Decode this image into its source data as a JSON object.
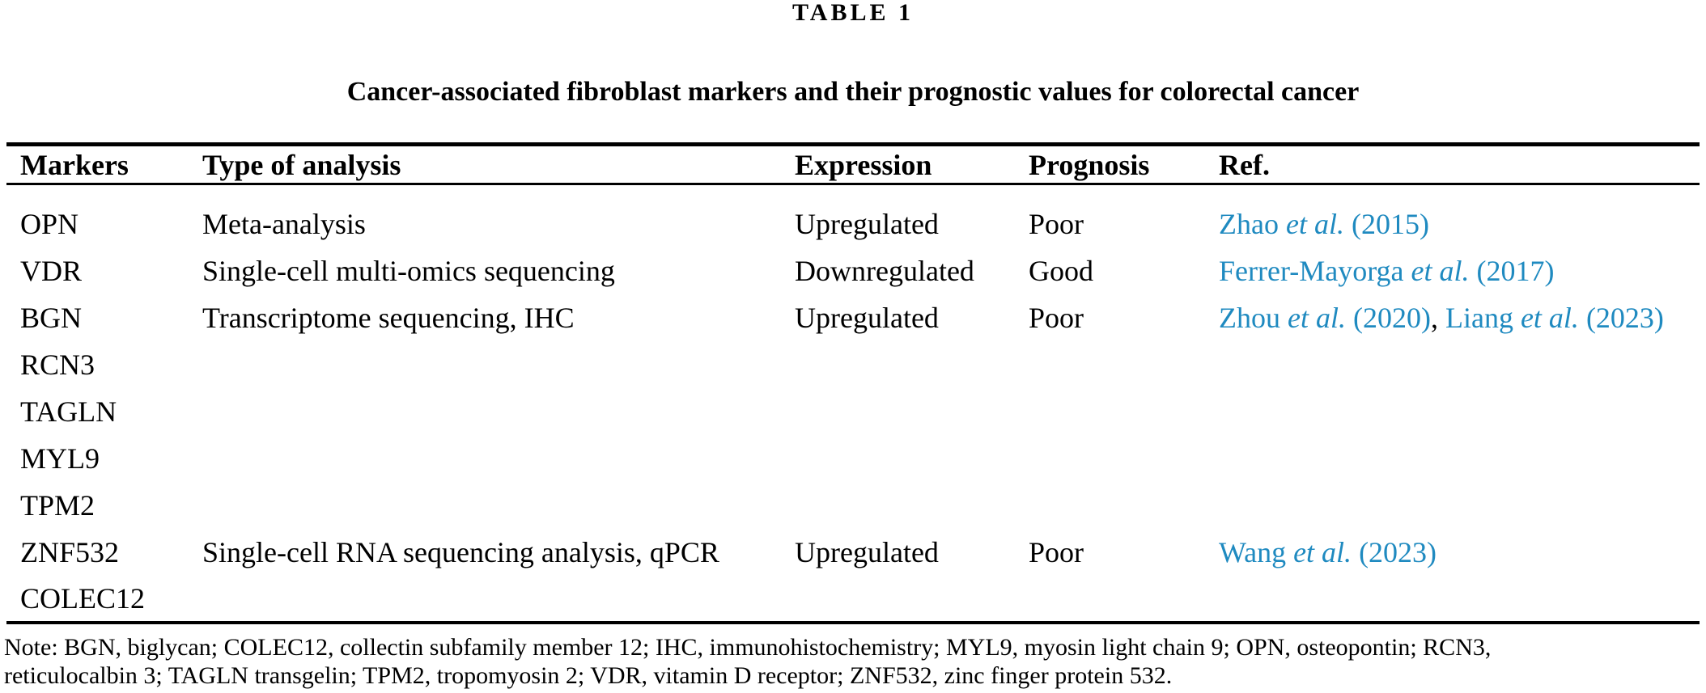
{
  "title": "TABLE 1",
  "subtitle": "Cancer-associated fibroblast markers and their prognostic values for colorectal cancer",
  "colors": {
    "link_blue": "#1f8ac0",
    "text": "#000000",
    "rule": "#000000",
    "background": "#ffffff"
  },
  "table": {
    "columns": [
      "Markers",
      "Type of analysis",
      "Expression",
      "Prognosis",
      "Ref."
    ],
    "rows": [
      {
        "marker": "OPN",
        "analysis": "Meta-analysis",
        "expression": "Upregulated",
        "prognosis": "Poor",
        "ref_segments": [
          {
            "text": "Zhao ",
            "style": "link"
          },
          {
            "text": "et al.",
            "style": "link-italic"
          },
          {
            "text": " (2015)",
            "style": "link"
          }
        ]
      },
      {
        "marker": "VDR",
        "analysis": "Single-cell multi-omics sequencing",
        "expression": "Downregulated",
        "prognosis": "Good",
        "ref_segments": [
          {
            "text": "Ferrer-Mayorga ",
            "style": "link"
          },
          {
            "text": "et al.",
            "style": "link-italic"
          },
          {
            "text": " (2017)",
            "style": "link"
          }
        ]
      },
      {
        "marker": "BGN",
        "analysis": "Transcriptome sequencing, IHC",
        "expression": "Upregulated",
        "prognosis": "Poor",
        "ref_segments": [
          {
            "text": "Zhou ",
            "style": "link"
          },
          {
            "text": "et al.",
            "style": "link-italic"
          },
          {
            "text": " (2020)",
            "style": "link"
          },
          {
            "text": ", ",
            "style": "plain"
          },
          {
            "text": "Liang ",
            "style": "link"
          },
          {
            "text": "et al.",
            "style": "link-italic"
          },
          {
            "text": " (2023)",
            "style": "link"
          }
        ]
      },
      {
        "marker": "RCN3",
        "analysis": "",
        "expression": "",
        "prognosis": "",
        "ref_segments": []
      },
      {
        "marker": "TAGLN",
        "analysis": "",
        "expression": "",
        "prognosis": "",
        "ref_segments": []
      },
      {
        "marker": "MYL9",
        "analysis": "",
        "expression": "",
        "prognosis": "",
        "ref_segments": []
      },
      {
        "marker": "TPM2",
        "analysis": "",
        "expression": "",
        "prognosis": "",
        "ref_segments": []
      },
      {
        "marker": "ZNF532",
        "analysis": "Single-cell RNA sequencing analysis, qPCR",
        "expression": "Upregulated",
        "prognosis": "Poor",
        "ref_segments": [
          {
            "text": "Wang ",
            "style": "link"
          },
          {
            "text": "et al.",
            "style": "link-italic"
          },
          {
            "text": " (2023)",
            "style": "link"
          }
        ]
      },
      {
        "marker": "COLEC12",
        "analysis": "",
        "expression": "",
        "prognosis": "",
        "ref_segments": []
      }
    ],
    "note_lines": [
      "Note: BGN, biglycan; COLEC12, collectin subfamily member 12; IHC, immunohistochemistry; MYL9, myosin light chain 9; OPN, osteopontin; RCN3,",
      "reticulocalbin 3; TAGLN transgelin; TPM2, tropomyosin 2; VDR, vitamin D receptor; ZNF532, zinc finger protein 532."
    ]
  }
}
